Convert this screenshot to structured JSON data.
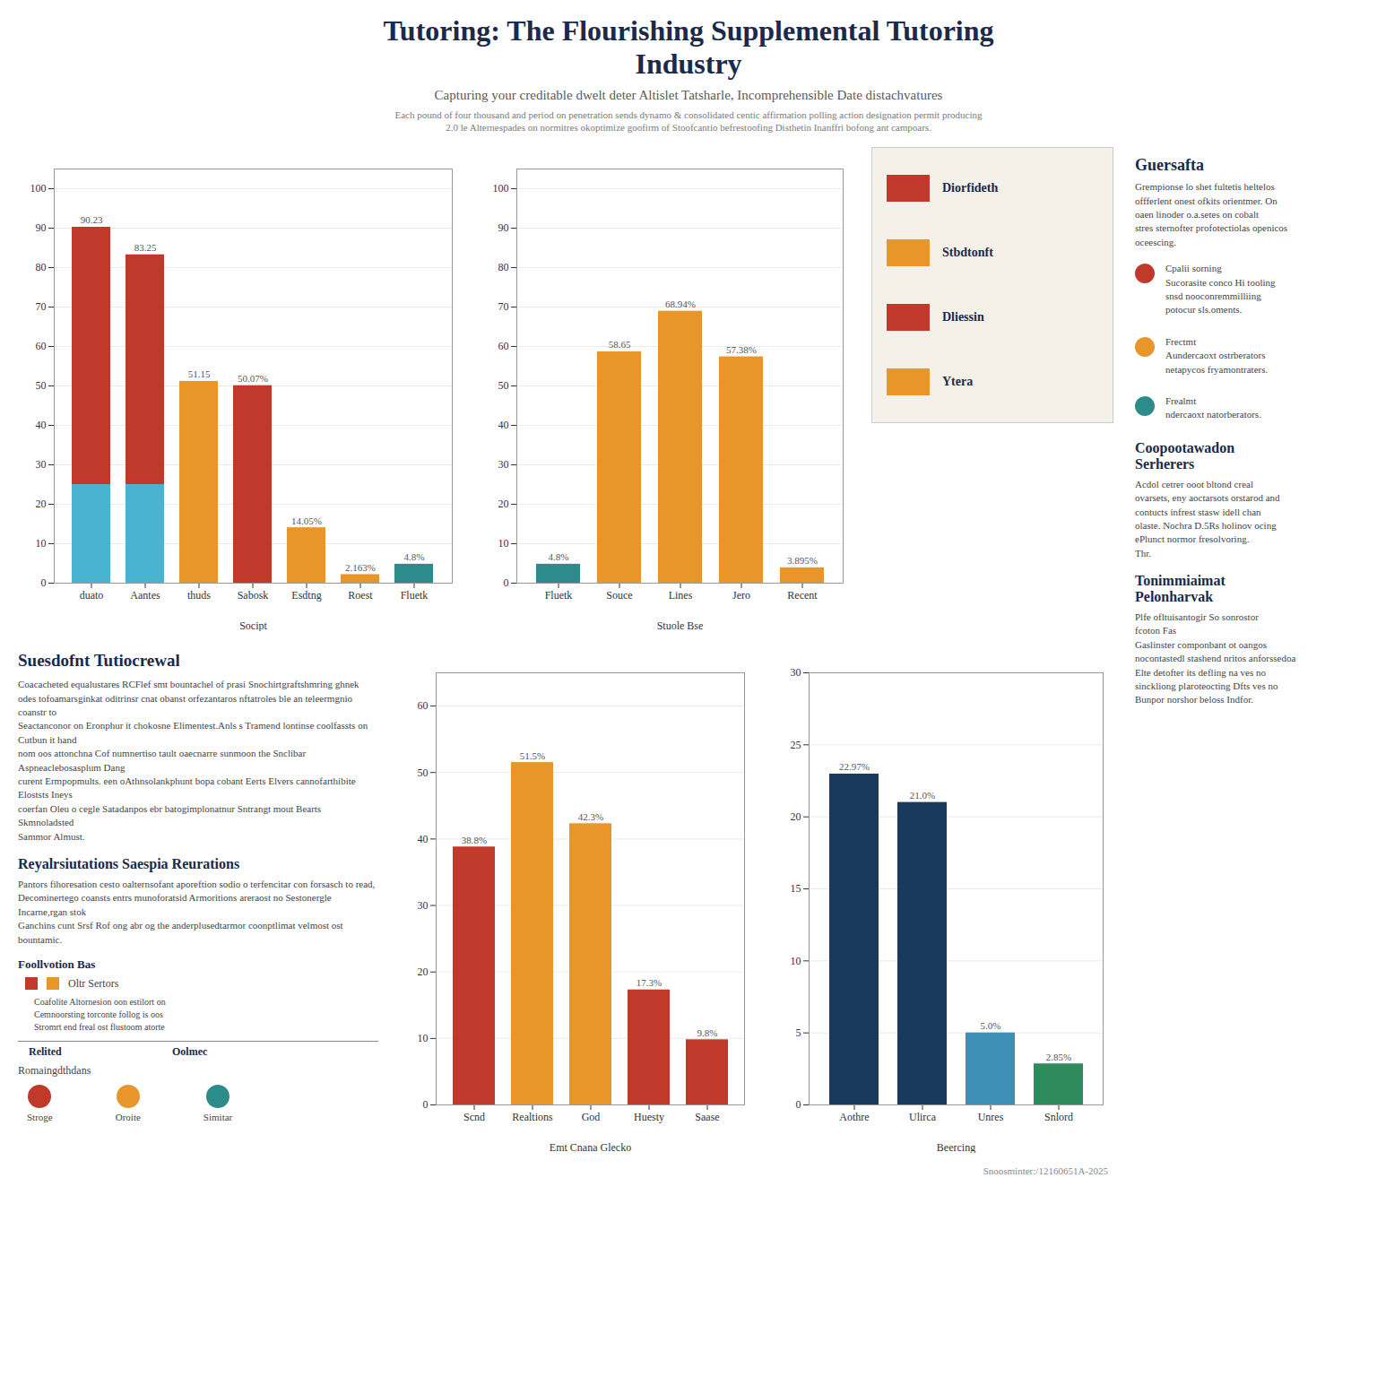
{
  "title": "Tutoring: The Flourishing Supplemental Tutoring\nIndustry",
  "subtitle": "Capturing your creditable dwelt deter Altislet Tatsharle, Incomprehensible Date distachvatures",
  "annotations": [
    [
      {
        "text": "Each pound of four thousand and period on penetration sends dynamo & consolidated centic affirmation polling action designation permit producing\n2.0 le Alternespades on normitres okoptimize goofirm of Stoofcantio befrestoofing Disthetin Inanffri bofong ant campoars."
      }
    ],
    [
      {
        "text": "Diorfideth",
        "color": "#c0392b"
      },
      {
        "text": "Stbdtonft",
        "color": "#e8952a"
      },
      {
        "text": "Dliessin",
        "color": "#c0392b"
      },
      {
        "text": "Ytera",
        "color": "#e8952a"
      }
    ],
    [
      {
        "text": "Suesdofnt Tutiocrewal"
      },
      {
        "text": "Coacacheted equalustares RCFlef smt bountachel of prasi Snochirtgraftshmring ghnek\nodes tofoamarsginkat oditrinsr cnat obanst orfezantaros nftatroles ble an teleermgnio coanstr to\nSeactanconor on Eronphur it chokosne Elimentest.Anls s Tramend lontinse coolfassts on Cutbun it hand\nnom oos attonchna Cof numnertiso tault oaecnarre sunmoon the Snclibar Aspneaclebosasplum Dang\ncurent Ermpopmults. een oAthnsolankphunt bopa cobant Eerts Elvers cannofarthibite Eloststs Ineys\ncoerfan Oleu o cegle Satadanpos ebr batogimplonatnur Sntrangt mout Bearts Skmnoladsted\nSammor Almust."
      },
      {
        "text": "Reyalrsiutations Saespia Reurations"
      },
      {
        "text": "Pantors fihoresation cesto oalternsofant aporeftion sodio o terfencitar con forsasch to read,\nDecominertego coansts entrs munoforatsid Armoritions areraost no Sestonergle Incarne,rgan stok\nGanchins cunt Srsf Rof ong abr og the anderplusedtarmor coonptlimat velmost ost bountamic."
      },
      {
        "text": "Foollvotion Bas"
      },
      {
        "text": "Oltr Sertors",
        "colors": [
          "#c0392b",
          "#e8952a"
        ]
      },
      {
        "text": "Coafolite Altornesion oon estilort on\nCemnoorsting torconte follog is oos\nStromrt end freal ost flustoom atorte"
      },
      {
        "text": "Relited"
      },
      {
        "text": "Oolmec"
      },
      {
        "text": "Romaingdthdans"
      },
      {
        "text": "Stroge",
        "color": "#c0392b"
      },
      {
        "text": "Oroite",
        "color": "#e8952a"
      },
      {
        "text": "Simitar",
        "color": "#2e8b8b"
      }
    ],
    [
      {
        "text": "Guersafta"
      },
      {
        "text": "Grempionse lo shet fultetis heltelos\noffferlent onest ofkits orientmer. On\noaen linoder o.a.setes on cobalt\nstres sternofter profotectiolas openicos\noceescing."
      },
      {
        "text": "Cpalii sorning\nSucorasite conco Hi tooling\nsnsd nooconremmilliing\npotocur sls.oments.",
        "color": "#c0392b"
      },
      {
        "text": "Frectmt\nAundercaoxt ostrberators\nnetapycos fryamontraters.",
        "color": "#e8952a"
      },
      {
        "text": "Frealmt\nndercaoxt natorberators.",
        "color": "#2e8b8b"
      },
      {
        "text": "Coopootawadon\nSerherers"
      },
      {
        "text": "Acdol cetrer ooot bltond creal\novarsets, eny aoctarsots orstarod and\ncontucts infrest stasw idell chan\nolaste. Nochra D.5Rs holinov ocing\nePlunct normor fresolvoring.\nThr."
      },
      {
        "text": "Tonimmiaimat\nPelonharvak"
      },
      {
        "text": "Plfe ofltuisantogir So sonrostor\nfcoton Fas\nGaslinster componbant ot oangos\nnocontastedl stashend nritos anforssedoa\nElte detofter its defling na ves no\nsinckliong plaroteocting Dfts ves no\nBunpor norshor beloss Indfor."
      }
    ],
    [
      {
        "text": "Snoosminter:/12160651A-2025"
      }
    ]
  ],
  "chart_data": [
    {
      "type": "bar",
      "stacked": true,
      "categories": [
        "duato",
        "Aantes",
        "thuds",
        "Sabosk",
        "Esdtng",
        "Roest",
        "Fluetk"
      ],
      "series": [
        {
          "values": [
            25.0,
            25.0,
            null,
            null,
            null,
            null,
            null
          ],
          "colors": [
            "#4ab3d0",
            "#4ab3d0",
            null,
            null,
            null,
            null,
            null
          ]
        },
        {
          "values": [
            65.23,
            58.25,
            51.15,
            50.07,
            14.05,
            2.163,
            4.8
          ],
          "colors": [
            "#c0392b",
            "#c0392b",
            "#e8952a",
            "#c0392b",
            "#e8952a",
            "#e8952a",
            "#2e8b8b"
          ]
        }
      ],
      "data_labels": true,
      "value_labels": [
        "90.23",
        "83.25",
        "51.15",
        "50.07%",
        "14.05%",
        "2.163%",
        "4.8%"
      ],
      "xlabel": "Socipt",
      "ylim": [
        0,
        105
      ],
      "yticks": [
        0,
        10,
        20,
        30,
        40,
        50,
        60,
        70,
        80,
        90,
        100
      ],
      "grid": true
    },
    {
      "type": "bar",
      "categories": [
        "Fluetk",
        "Souce",
        "Lines",
        "Jero",
        "Recent"
      ],
      "values": [
        4.8,
        58.65,
        68.94,
        57.38,
        3.895
      ],
      "colors": [
        "#2e8b8b",
        "#e8952a",
        "#e8952a",
        "#e8952a",
        "#e8952a"
      ],
      "data_labels": true,
      "value_labels": [
        "4.8%",
        "58.65",
        "68.94%",
        "57.38%",
        "3.895%"
      ],
      "xlabel": "Stuole Bse",
      "ylim": [
        0,
        105
      ],
      "yticks": [
        0,
        10,
        20,
        30,
        40,
        50,
        60,
        70,
        80,
        90,
        100
      ],
      "grid": true
    },
    {
      "type": "bar",
      "categories": [
        "Scnd",
        "Realtions",
        "God",
        "Huesty",
        "Saase"
      ],
      "values": [
        38.8,
        51.5,
        42.3,
        17.3,
        9.8
      ],
      "colors": [
        "#c0392b",
        "#e8952a",
        "#e8952a",
        "#c0392b",
        "#c0392b"
      ],
      "data_labels": true,
      "value_labels": [
        "38.8%",
        "51.5%",
        "42.3%",
        "17.3%",
        "9.8%"
      ],
      "xlabel": "Emt Cnana Glecko",
      "ylim": [
        0,
        65
      ],
      "yticks": [
        0,
        10,
        20,
        30,
        40,
        50,
        60
      ],
      "grid": true
    },
    {
      "type": "bar",
      "categories": [
        "Aothre",
        "Ulirca",
        "Unres",
        "Snlord"
      ],
      "values": [
        22.97,
        21.0,
        5.0,
        2.85
      ],
      "colors": [
        "#1a3a5c",
        "#1a3a5c",
        "#3d8fb5",
        "#2e8b5c"
      ],
      "data_labels": true,
      "value_labels": [
        "22.97%",
        "21.0%",
        "5.0%",
        "2.85%"
      ],
      "xlabel": "Beercing",
      "ylim": [
        0,
        30
      ],
      "yticks": [
        0,
        5,
        10,
        15,
        20,
        25,
        30
      ],
      "grid": true
    }
  ]
}
